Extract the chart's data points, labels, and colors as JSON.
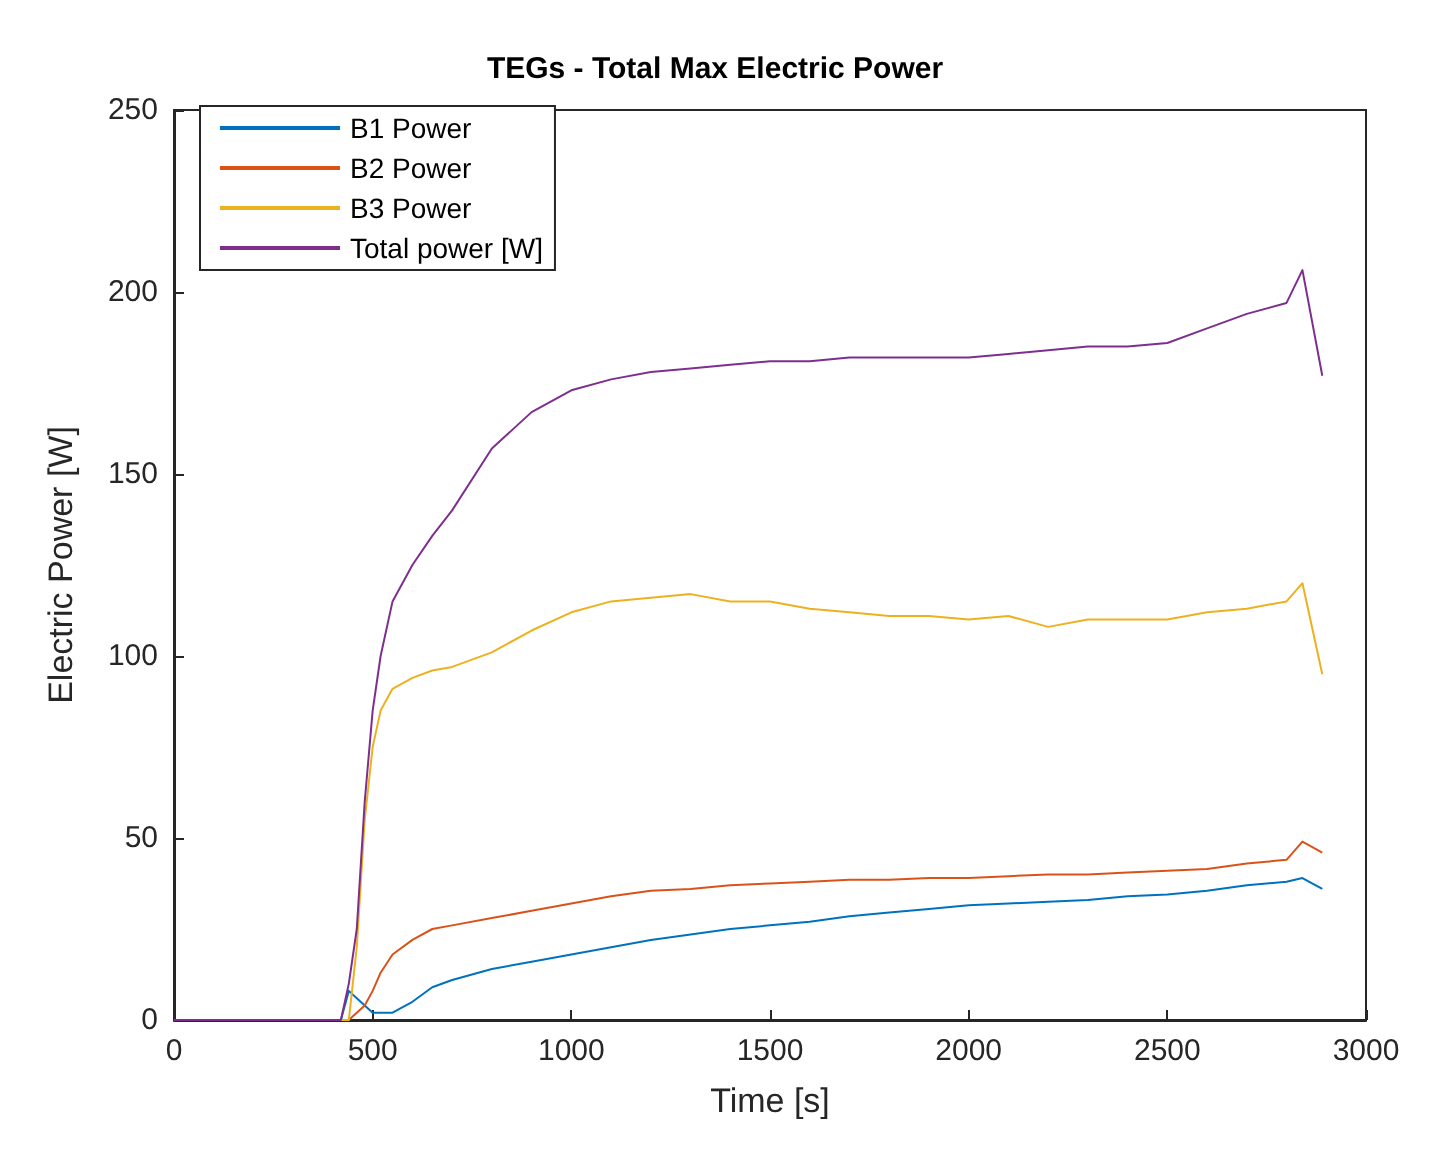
{
  "chart_data": {
    "type": "line",
    "title": "TEGs - Total Max Electric Power",
    "xlabel": "Time [s]",
    "ylabel": "Electric Power [W]",
    "x": [
      0,
      400,
      420,
      440,
      460,
      480,
      500,
      520,
      550,
      600,
      650,
      700,
      800,
      900,
      1000,
      1100,
      1200,
      1300,
      1400,
      1500,
      1600,
      1700,
      1800,
      1900,
      2000,
      2100,
      2200,
      2300,
      2400,
      2500,
      2600,
      2700,
      2800,
      2840,
      2890
    ],
    "series": [
      {
        "name": "B1 Power",
        "color": "#0072bd",
        "values": [
          0,
          0,
          0,
          8,
          6,
          4,
          2,
          2,
          2,
          5,
          9,
          11,
          14,
          16,
          18,
          20,
          22,
          23.5,
          25,
          26,
          27,
          28.5,
          29.5,
          30.5,
          31.5,
          32,
          32.5,
          33,
          34,
          34.5,
          35.5,
          37,
          38,
          39,
          36
        ]
      },
      {
        "name": "B2 Power",
        "color": "#d95319",
        "values": [
          0,
          0,
          0,
          0,
          2,
          4,
          8,
          13,
          18,
          22,
          25,
          26,
          28,
          30,
          32,
          34,
          35.5,
          36,
          37,
          37.5,
          38,
          38.5,
          38.5,
          39,
          39,
          39.5,
          40,
          40,
          40.5,
          41,
          41.5,
          43,
          44,
          49,
          46
        ]
      },
      {
        "name": "B3 Power",
        "color": "#edb120",
        "values": [
          0,
          0,
          0,
          0,
          20,
          55,
          75,
          85,
          91,
          94,
          96,
          97,
          101,
          107,
          112,
          115,
          116,
          117,
          115,
          115,
          113,
          112,
          111,
          111,
          110,
          111,
          108,
          110,
          110,
          110,
          112,
          113,
          115,
          120,
          95
        ]
      },
      {
        "name": "Total power [W]",
        "color": "#7e2f8e",
        "values": [
          0,
          0,
          0,
          10,
          25,
          60,
          85,
          100,
          115,
          125,
          133,
          140,
          157,
          167,
          173,
          176,
          178,
          179,
          180,
          181,
          181,
          182,
          182,
          182,
          182,
          183,
          184,
          185,
          185,
          186,
          190,
          194,
          197,
          206,
          177
        ]
      }
    ],
    "xlim": [
      0,
      3000
    ],
    "xticks": [
      0,
      500,
      1000,
      1500,
      2000,
      2500,
      3000
    ],
    "ylim": [
      0,
      250
    ],
    "yticks": [
      0,
      50,
      100,
      150,
      200,
      250
    ],
    "grid": false,
    "legend": "top left",
    "marker": "none",
    "line_style": "solid"
  }
}
